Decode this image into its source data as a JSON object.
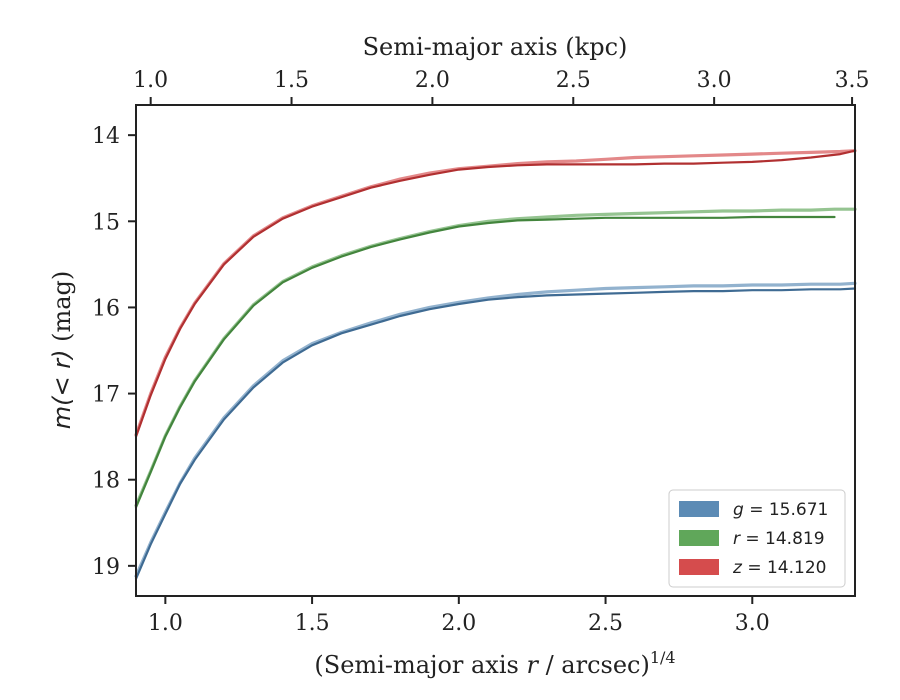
{
  "chart_data": {
    "type": "line",
    "xlabel_prefix": "(Semi-major axis ",
    "xlabel_var": "r",
    "xlabel_suffix": " / arcsec)",
    "xlabel_sup": "1/4",
    "ylabel_var": "m(< r)",
    "ylabel_suffix": " (mag)",
    "top_xlabel": "Semi-major axis (kpc)",
    "xlim": [
      0.9,
      3.35
    ],
    "ylim": [
      19.35,
      13.65
    ],
    "y_inverted": true,
    "bottom_ticks": [
      "1.0",
      "1.5",
      "2.0",
      "2.5",
      "3.0"
    ],
    "left_ticks": [
      "14",
      "15",
      "16",
      "17",
      "18",
      "19"
    ],
    "top_ticks": [
      "1.0",
      "1.5",
      "2.0",
      "2.5",
      "3.0",
      "3.5"
    ],
    "top_ticks_x": [
      0.95,
      1.43,
      1.91,
      2.39,
      2.87,
      3.34
    ],
    "legend_position": "lower-right",
    "series": [
      {
        "name": "g = 15.671",
        "label_var": "g",
        "label_value": "= 15.671",
        "color": "#4a7ead",
        "x": [
          0.9,
          0.95,
          1.0,
          1.05,
          1.1,
          1.2,
          1.3,
          1.4,
          1.5,
          1.6,
          1.7,
          1.8,
          1.9,
          2.0,
          2.1,
          2.2,
          2.3,
          2.4,
          2.5,
          2.6,
          2.7,
          2.8,
          2.9,
          3.0,
          3.1,
          3.2,
          3.3,
          3.35
        ],
        "y": [
          19.15,
          18.75,
          18.4,
          18.05,
          17.77,
          17.3,
          16.93,
          16.64,
          16.44,
          16.3,
          16.2,
          16.1,
          16.02,
          15.96,
          15.91,
          15.88,
          15.86,
          15.85,
          15.84,
          15.83,
          15.82,
          15.81,
          15.81,
          15.8,
          15.8,
          15.79,
          15.79,
          15.78
        ],
        "model_y": [
          19.12,
          18.73,
          18.38,
          18.04,
          17.75,
          17.28,
          16.91,
          16.62,
          16.42,
          16.29,
          16.18,
          16.08,
          16.0,
          15.94,
          15.89,
          15.85,
          15.82,
          15.8,
          15.78,
          15.77,
          15.76,
          15.75,
          15.75,
          15.74,
          15.74,
          15.73,
          15.73,
          15.72
        ],
        "model_x_end": 3.35
      },
      {
        "name": "r = 14.819",
        "label_var": "r",
        "label_value": "= 14.819",
        "color": "#4f9d48",
        "x": [
          0.9,
          0.95,
          1.0,
          1.05,
          1.1,
          1.2,
          1.3,
          1.4,
          1.5,
          1.6,
          1.7,
          1.8,
          1.9,
          2.0,
          2.1,
          2.2,
          2.3,
          2.4,
          2.5,
          2.6,
          2.7,
          2.8,
          2.9,
          3.0,
          3.1,
          3.2,
          3.28
        ],
        "y": [
          18.32,
          17.91,
          17.5,
          17.16,
          16.86,
          16.37,
          15.98,
          15.71,
          15.54,
          15.41,
          15.3,
          15.21,
          15.13,
          15.06,
          15.02,
          14.99,
          14.98,
          14.97,
          14.96,
          14.96,
          14.96,
          14.96,
          14.96,
          14.95,
          14.95,
          14.95,
          14.95
        ],
        "model_y": [
          18.3,
          17.9,
          17.49,
          17.15,
          16.85,
          16.36,
          15.97,
          15.7,
          15.53,
          15.4,
          15.29,
          15.2,
          15.12,
          15.05,
          15.0,
          14.97,
          14.95,
          14.93,
          14.92,
          14.91,
          14.9,
          14.89,
          14.88,
          14.88,
          14.87,
          14.87,
          14.86
        ],
        "model_x_end": 3.35
      },
      {
        "name": "z = 14.120",
        "label_var": "z",
        "label_value": "= 14.120",
        "color": "#d0393a",
        "x": [
          0.9,
          0.95,
          1.0,
          1.05,
          1.1,
          1.2,
          1.3,
          1.4,
          1.5,
          1.6,
          1.7,
          1.8,
          1.9,
          2.0,
          2.1,
          2.2,
          2.3,
          2.4,
          2.5,
          2.6,
          2.7,
          2.8,
          2.9,
          3.0,
          3.1,
          3.2,
          3.3,
          3.35
        ],
        "y": [
          17.5,
          17.02,
          16.6,
          16.25,
          15.96,
          15.5,
          15.18,
          14.97,
          14.83,
          14.72,
          14.61,
          14.53,
          14.46,
          14.4,
          14.37,
          14.35,
          14.34,
          14.34,
          14.34,
          14.34,
          14.33,
          14.33,
          14.32,
          14.31,
          14.29,
          14.26,
          14.22,
          14.18
        ],
        "model_y": [
          17.48,
          17.0,
          16.58,
          16.24,
          15.95,
          15.49,
          15.17,
          14.96,
          14.82,
          14.71,
          14.6,
          14.51,
          14.44,
          14.39,
          14.36,
          14.33,
          14.31,
          14.3,
          14.28,
          14.26,
          14.25,
          14.24,
          14.23,
          14.22,
          14.21,
          14.2,
          14.19,
          14.18
        ],
        "model_x_end": 3.35
      }
    ]
  }
}
